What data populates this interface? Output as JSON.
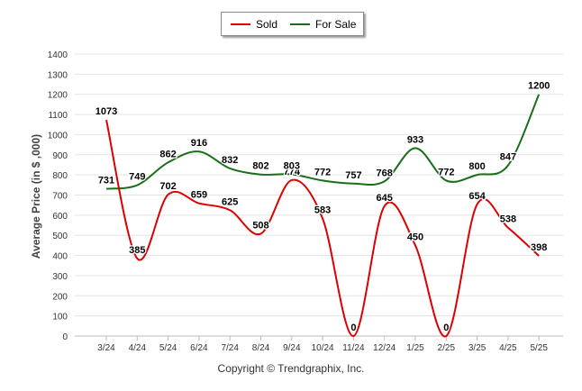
{
  "chart_data": {
    "type": "line",
    "categories": [
      "3/24",
      "4/24",
      "5/24",
      "6/24",
      "7/24",
      "8/24",
      "9/24",
      "10/24",
      "11/24",
      "12/24",
      "1/25",
      "2/25",
      "3/25",
      "4/25",
      "5/25"
    ],
    "series": [
      {
        "name": "Sold",
        "color": "#dd0000",
        "values": [
          1073,
          385,
          702,
          659,
          625,
          508,
          774,
          583,
          0,
          645,
          450,
          0,
          654,
          538,
          398
        ],
        "labels": [
          "1073",
          "385",
          "702",
          "659",
          "625",
          "508",
          "774",
          "583",
          "0",
          "645",
          "450",
          "0",
          "654",
          "538",
          "398"
        ]
      },
      {
        "name": "For Sale",
        "color": "#1a6e1a",
        "values": [
          731,
          749,
          862,
          916,
          832,
          802,
          803,
          772,
          757,
          768,
          933,
          772,
          800,
          847,
          1200
        ],
        "labels": [
          "731",
          "749",
          "862",
          "916",
          "832",
          "802",
          "803",
          "772",
          "757",
          "768",
          "933",
          "772",
          "800",
          "847",
          "1200"
        ]
      }
    ],
    "yticks": [
      "0",
      "100",
      "200",
      "300",
      "400",
      "500",
      "600",
      "700",
      "800",
      "900",
      "1000",
      "1100",
      "1200",
      "1300",
      "1400"
    ],
    "ylim": [
      0,
      1400
    ],
    "ylabel": "Average Price (in $ ,000)",
    "xlabel": "",
    "grid": true,
    "legend_position": "top-center"
  },
  "footer": "Copyright © Trendgraphix, Inc."
}
